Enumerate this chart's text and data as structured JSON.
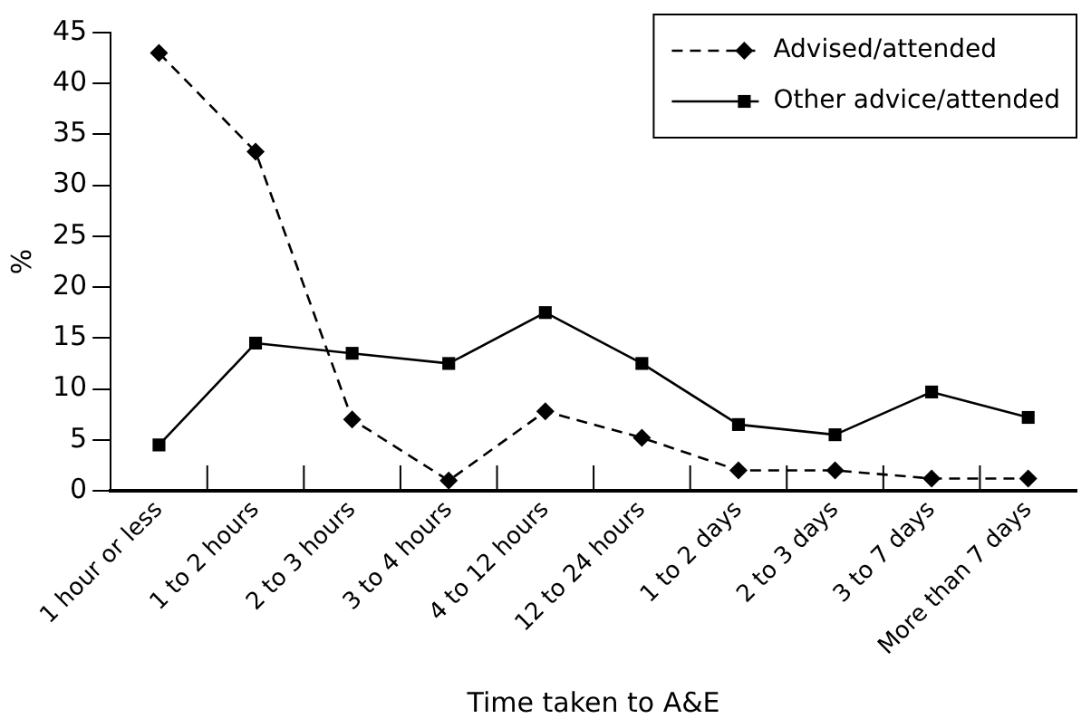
{
  "chart_data": {
    "type": "line",
    "xlabel": "Time taken to A&E",
    "ylabel": "%",
    "categories": [
      "1 hour or less",
      "1 to 2 hours",
      "2 to 3 hours",
      "3 to 4 hours",
      "4 to 12 hours",
      "12 to 24 hours",
      "1 to 2 days",
      "2 to 3 days",
      "3 to 7 days",
      "More than 7 days"
    ],
    "series": [
      {
        "name": "Advised/attended",
        "color": "#000000",
        "marker": "diamond",
        "line_style": "dashed",
        "values": [
          43,
          33.3,
          7,
          1,
          7.8,
          5.2,
          2,
          2,
          1.2,
          1.2
        ]
      },
      {
        "name": "Other advice/attended",
        "color": "#000000",
        "marker": "square",
        "line_style": "solid",
        "values": [
          4.5,
          14.5,
          13.5,
          12.5,
          17.5,
          12.5,
          6.5,
          5.5,
          9.7,
          7.2
        ]
      }
    ],
    "ylim": [
      0,
      45
    ],
    "yticks": [
      0,
      5,
      10,
      15,
      20,
      25,
      30,
      35,
      40,
      45
    ],
    "grid": false,
    "legend": "top right"
  }
}
